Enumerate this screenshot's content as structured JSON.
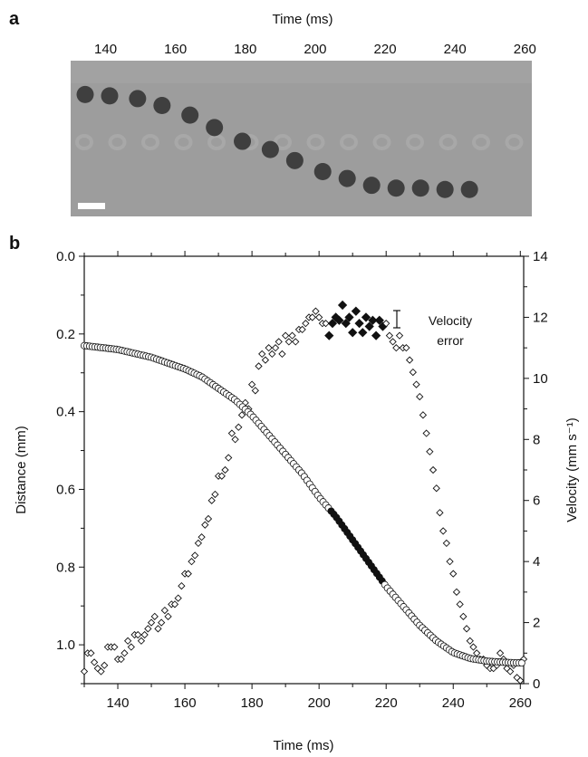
{
  "panel_a": {
    "label": "a",
    "top_axis_title": "Time (ms)",
    "ticks": [
      140,
      160,
      180,
      200,
      220,
      240,
      260
    ],
    "time_range": [
      130,
      262
    ],
    "bead_times": [
      130,
      137,
      145,
      152,
      160,
      167,
      175,
      183,
      190,
      198,
      205,
      212,
      219,
      226,
      233,
      240
    ],
    "bead_rows": [
      0.18,
      0.19,
      0.21,
      0.26,
      0.33,
      0.42,
      0.52,
      0.58,
      0.66,
      0.74,
      0.79,
      0.84,
      0.86,
      0.86,
      0.87,
      0.87
    ],
    "background_color": "#9d9d9d",
    "bead_color": "#3f3f3f"
  },
  "chart_data": {
    "type": "scatter",
    "label": "b",
    "xlabel": "Time (ms)",
    "ylabel_left": "Distance (mm)",
    "ylabel_right": "Velocity (mm s⁻¹)",
    "xlim": [
      130,
      261
    ],
    "xticks": [
      140,
      160,
      180,
      200,
      220,
      240,
      260
    ],
    "ylim_left": [
      0.0,
      1.1
    ],
    "yticks_left": [
      "0.0",
      "0.2",
      "0.4",
      "0.6",
      "0.8",
      "1.0"
    ],
    "ylim_right": [
      0,
      14
    ],
    "yticks_right": [
      0,
      2,
      4,
      6,
      8,
      10,
      12,
      14
    ],
    "annotation": [
      "Velocity",
      "error"
    ],
    "distance_series": {
      "marker": "open-circle",
      "highlight_range": [
        203,
        219
      ],
      "points": [
        [
          130,
          0.23
        ],
        [
          140,
          0.24
        ],
        [
          150,
          0.26
        ],
        [
          160,
          0.29
        ],
        [
          165,
          0.31
        ],
        [
          170,
          0.34
        ],
        [
          175,
          0.37
        ],
        [
          180,
          0.41
        ],
        [
          185,
          0.46
        ],
        [
          190,
          0.51
        ],
        [
          195,
          0.56
        ],
        [
          200,
          0.62
        ],
        [
          205,
          0.67
        ],
        [
          210,
          0.73
        ],
        [
          215,
          0.79
        ],
        [
          220,
          0.85
        ],
        [
          225,
          0.9
        ],
        [
          230,
          0.95
        ],
        [
          235,
          0.99
        ],
        [
          240,
          1.02
        ],
        [
          245,
          1.035
        ],
        [
          250,
          1.042
        ],
        [
          255,
          1.045
        ],
        [
          261,
          1.047
        ]
      ]
    },
    "velocity_series": {
      "marker": "open-diamond",
      "highlight_marker": "filled-diamond",
      "points": [
        [
          130,
          0.4
        ],
        [
          131,
          1.0
        ],
        [
          132,
          1.0
        ],
        [
          133,
          0.7
        ],
        [
          134,
          0.5
        ],
        [
          135,
          0.4
        ],
        [
          136,
          0.6
        ],
        [
          137,
          1.2
        ],
        [
          138,
          1.2
        ],
        [
          139,
          1.2
        ],
        [
          140,
          0.8
        ],
        [
          141,
          0.8
        ],
        [
          142,
          1.0
        ],
        [
          143,
          1.4
        ],
        [
          144,
          1.2
        ],
        [
          145,
          1.6
        ],
        [
          146,
          1.6
        ],
        [
          147,
          1.4
        ],
        [
          148,
          1.6
        ],
        [
          149,
          1.8
        ],
        [
          150,
          2.0
        ],
        [
          151,
          2.2
        ],
        [
          152,
          1.8
        ],
        [
          153,
          2.0
        ],
        [
          154,
          2.4
        ],
        [
          155,
          2.2
        ],
        [
          156,
          2.6
        ],
        [
          157,
          2.6
        ],
        [
          158,
          2.8
        ],
        [
          159,
          3.2
        ],
        [
          160,
          3.6
        ],
        [
          161,
          3.6
        ],
        [
          162,
          4.0
        ],
        [
          163,
          4.2
        ],
        [
          164,
          4.6
        ],
        [
          165,
          4.8
        ],
        [
          166,
          5.2
        ],
        [
          167,
          5.4
        ],
        [
          168,
          6.0
        ],
        [
          169,
          6.2
        ],
        [
          170,
          6.8
        ],
        [
          171,
          6.8
        ],
        [
          172,
          7.0
        ],
        [
          173,
          7.4
        ],
        [
          174,
          8.2
        ],
        [
          175,
          8.0
        ],
        [
          176,
          8.4
        ],
        [
          177,
          8.8
        ],
        [
          178,
          9.2
        ],
        [
          179,
          9.0
        ],
        [
          180,
          9.8
        ],
        [
          181,
          9.6
        ],
        [
          182,
          10.4
        ],
        [
          183,
          10.8
        ],
        [
          184,
          10.6
        ],
        [
          185,
          11.0
        ],
        [
          186,
          10.8
        ],
        [
          187,
          11.0
        ],
        [
          188,
          11.2
        ],
        [
          189,
          10.8
        ],
        [
          190,
          11.4
        ],
        [
          191,
          11.2
        ],
        [
          192,
          11.4
        ],
        [
          193,
          11.2
        ],
        [
          194,
          11.6
        ],
        [
          195,
          11.6
        ],
        [
          196,
          11.8
        ],
        [
          197,
          12.0
        ],
        [
          198,
          12.0
        ],
        [
          199,
          12.2
        ],
        [
          200,
          12.0
        ],
        [
          201,
          11.8
        ],
        [
          202,
          11.8
        ],
        [
          203,
          11.4
        ],
        [
          204,
          11.8
        ],
        [
          205,
          12.0
        ],
        [
          206,
          11.9
        ],
        [
          207,
          12.4
        ],
        [
          208,
          11.8
        ],
        [
          209,
          12.0
        ],
        [
          210,
          11.5
        ],
        [
          211,
          12.2
        ],
        [
          212,
          11.8
        ],
        [
          213,
          11.5
        ],
        [
          214,
          12.0
        ],
        [
          215,
          11.7
        ],
        [
          216,
          11.9
        ],
        [
          217,
          11.4
        ],
        [
          218,
          11.9
        ],
        [
          219,
          11.7
        ],
        [
          220,
          11.8
        ],
        [
          221,
          11.4
        ],
        [
          222,
          11.2
        ],
        [
          223,
          11.0
        ],
        [
          224,
          11.4
        ],
        [
          225,
          11.0
        ],
        [
          226,
          11.0
        ],
        [
          227,
          10.6
        ],
        [
          228,
          10.2
        ],
        [
          229,
          9.8
        ],
        [
          230,
          9.4
        ],
        [
          231,
          8.8
        ],
        [
          232,
          8.2
        ],
        [
          233,
          7.6
        ],
        [
          234,
          7.0
        ],
        [
          235,
          6.4
        ],
        [
          236,
          5.6
        ],
        [
          237,
          5.0
        ],
        [
          238,
          4.6
        ],
        [
          239,
          4.0
        ],
        [
          240,
          3.6
        ],
        [
          241,
          3.0
        ],
        [
          242,
          2.6
        ],
        [
          243,
          2.2
        ],
        [
          244,
          1.8
        ],
        [
          245,
          1.4
        ],
        [
          246,
          1.2
        ],
        [
          247,
          1.0
        ],
        [
          248,
          0.8
        ],
        [
          249,
          0.8
        ],
        [
          250,
          0.6
        ],
        [
          251,
          0.5
        ],
        [
          252,
          0.5
        ],
        [
          253,
          0.6
        ],
        [
          254,
          1.0
        ],
        [
          255,
          0.8
        ],
        [
          256,
          0.5
        ],
        [
          257,
          0.4
        ],
        [
          258,
          0.6
        ],
        [
          259,
          0.2
        ],
        [
          260,
          0.1
        ],
        [
          261,
          0.8
        ]
      ]
    }
  }
}
